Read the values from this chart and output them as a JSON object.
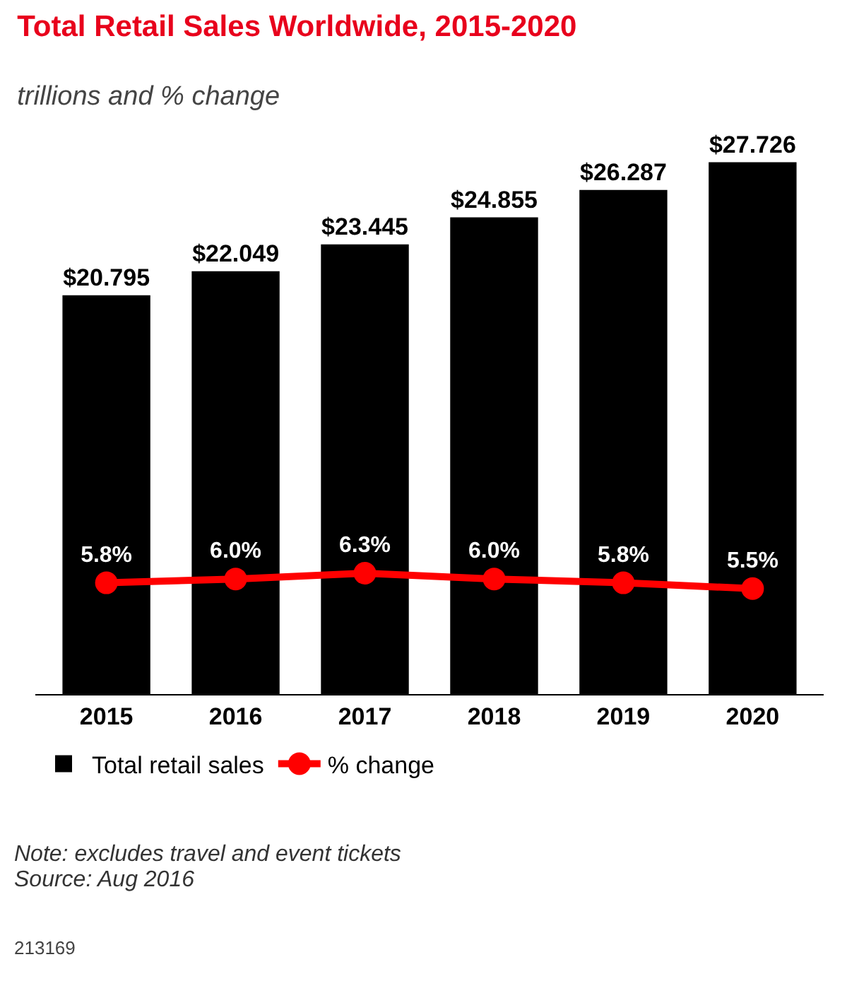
{
  "chart_data": {
    "type": "bar",
    "title": "Total Retail Sales Worldwide, 2015-2020",
    "subtitle": "trillions and % change",
    "categories": [
      "2015",
      "2016",
      "2017",
      "2018",
      "2019",
      "2020"
    ],
    "series": [
      {
        "name": "Total retail sales",
        "color": "#000000",
        "values": [
          20.795,
          22.049,
          23.445,
          24.855,
          26.287,
          27.726
        ],
        "value_labels": [
          "$20.795",
          "$22.049",
          "$23.445",
          "$24.855",
          "$26.287",
          "$27.726"
        ]
      },
      {
        "name": "% change",
        "type": "line",
        "color": "#ff0000",
        "values": [
          5.8,
          6.0,
          6.3,
          6.0,
          5.8,
          5.5
        ],
        "value_labels": [
          "5.8%",
          "6.0%",
          "6.3%",
          "6.0%",
          "5.8%",
          "5.5%"
        ]
      }
    ],
    "marker": "circle",
    "line_style": "solid",
    "grid": false,
    "legend": "bottom left",
    "annotations": [
      "Note: excludes travel and event tickets",
      "Source: Aug 2016",
      "213169"
    ]
  }
}
